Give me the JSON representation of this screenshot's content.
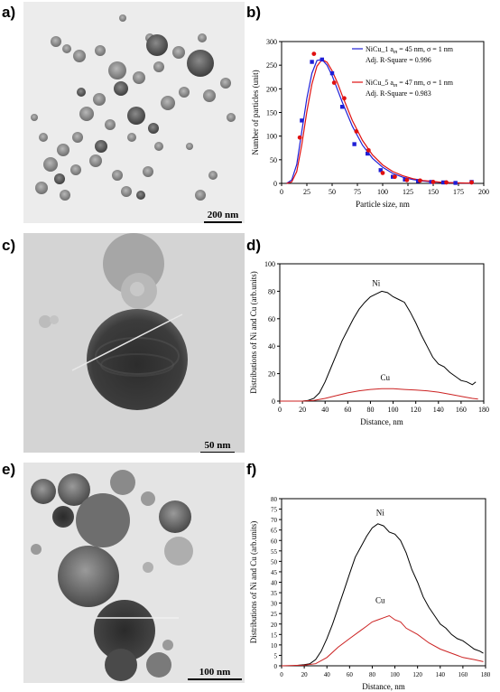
{
  "panel_labels": [
    "a)",
    "b)",
    "c)",
    "d)",
    "e)",
    "f)"
  ],
  "tem_images": [
    {
      "panel": "a)",
      "scale_label": "200 nm",
      "background": "#ececec"
    },
    {
      "panel": "c)",
      "scale_label": "50 nm",
      "background": "#dcdcdc"
    },
    {
      "panel": "e)",
      "scale_label": "100 nm",
      "background": "#e4e4e4"
    }
  ],
  "colors": {
    "blue": "#1f1fd6",
    "red": "#e01010",
    "black": "#000000"
  },
  "chart_data": [
    {
      "panel": "b)",
      "type": "scatter",
      "xlabel": "Particle size, nm",
      "ylabel": "Number of particles (unit)",
      "xlim": [
        0,
        200
      ],
      "ylim": [
        0,
        300
      ],
      "xticks": [
        "0",
        "25",
        "50",
        "75",
        "100",
        "125",
        "150",
        "175",
        "200"
      ],
      "yticks": [
        "0",
        "50",
        "100",
        "150",
        "200",
        "250",
        "300"
      ],
      "grid": false,
      "legend_position": "top-right",
      "legend": [
        {
          "line1": "NiCu_1 a",
          "sub": "m",
          "line1_rest": " = 45 nm, σ = 1 nm",
          "line2": "Adj. R-Square = 0.996",
          "color": "#1f1fd6"
        },
        {
          "line1": "NiCu_5 a",
          "sub": "m",
          "line1_rest": " = 47 nm, σ = 1 nm",
          "line2": "Adj. R-Square = 0.983",
          "color": "#e01010"
        }
      ],
      "series": [
        {
          "name": "NiCu_1",
          "color": "#1f1fd6",
          "points": [
            [
              20,
              133
            ],
            [
              30,
              257
            ],
            [
              40,
              262
            ],
            [
              50,
              233
            ],
            [
              60,
              162
            ],
            [
              72,
              83
            ],
            [
              85,
              63
            ],
            [
              98,
              28
            ],
            [
              110,
              14
            ],
            [
              122,
              8
            ],
            [
              135,
              5
            ],
            [
              148,
              3
            ],
            [
              160,
              2
            ],
            [
              172,
              1
            ],
            [
              188,
              3
            ]
          ],
          "fit": [
            [
              5,
              0
            ],
            [
              10,
              7
            ],
            [
              15,
              40
            ],
            [
              20,
              110
            ],
            [
              25,
              180
            ],
            [
              30,
              233
            ],
            [
              35,
              260
            ],
            [
              40,
              262
            ],
            [
              45,
              250
            ],
            [
              50,
              228
            ],
            [
              55,
              200
            ],
            [
              60,
              172
            ],
            [
              70,
              121
            ],
            [
              80,
              81
            ],
            [
              90,
              53
            ],
            [
              100,
              34
            ],
            [
              110,
              21
            ],
            [
              120,
              13
            ],
            [
              130,
              8
            ],
            [
              140,
              5
            ],
            [
              150,
              3
            ],
            [
              160,
              2
            ],
            [
              175,
              1
            ],
            [
              190,
              0.5
            ]
          ]
        },
        {
          "name": "NiCu_5",
          "color": "#e01010",
          "points": [
            [
              18,
              97
            ],
            [
              32,
              274
            ],
            [
              52,
              213
            ],
            [
              62,
              180
            ],
            [
              74,
              110
            ],
            [
              86,
              70
            ],
            [
              100,
              22
            ],
            [
              112,
              14
            ],
            [
              124,
              7
            ],
            [
              137,
              6
            ],
            [
              150,
              3
            ],
            [
              163,
              2
            ],
            [
              188,
              2
            ]
          ],
          "fit": [
            [
              5,
              0
            ],
            [
              10,
              3
            ],
            [
              15,
              25
            ],
            [
              20,
              82
            ],
            [
              25,
              152
            ],
            [
              30,
              210
            ],
            [
              35,
              248
            ],
            [
              40,
              262
            ],
            [
              45,
              256
            ],
            [
              50,
              238
            ],
            [
              55,
              214
            ],
            [
              60,
              186
            ],
            [
              70,
              133
            ],
            [
              80,
              91
            ],
            [
              90,
              60
            ],
            [
              100,
              39
            ],
            [
              110,
              25
            ],
            [
              120,
              16
            ],
            [
              130,
              10
            ],
            [
              140,
              6
            ],
            [
              150,
              4
            ],
            [
              160,
              2
            ],
            [
              175,
              1
            ],
            [
              190,
              0.5
            ]
          ]
        }
      ]
    },
    {
      "panel": "d)",
      "type": "line",
      "xlabel": "Distance, nm",
      "ylabel": "Distributions of Ni and Cu (arb.units)",
      "xlim": [
        0,
        180
      ],
      "ylim": [
        0,
        100
      ],
      "xticks": [
        "0",
        "20",
        "40",
        "60",
        "80",
        "100",
        "120",
        "140",
        "160",
        "180"
      ],
      "yticks": [
        "0",
        "20",
        "40",
        "60",
        "80",
        "100"
      ],
      "grid": false,
      "annotations": [
        "Ni",
        "Cu"
      ],
      "series": [
        {
          "name": "Ni",
          "color": "#000000",
          "points": [
            [
              0,
              0
            ],
            [
              10,
              0
            ],
            [
              20,
              0
            ],
            [
              25,
              0.5
            ],
            [
              30,
              2
            ],
            [
              35,
              6
            ],
            [
              40,
              14
            ],
            [
              45,
              24
            ],
            [
              50,
              34
            ],
            [
              55,
              44
            ],
            [
              60,
              52
            ],
            [
              65,
              60
            ],
            [
              70,
              67
            ],
            [
              75,
              72
            ],
            [
              80,
              76
            ],
            [
              85,
              78
            ],
            [
              90,
              80
            ],
            [
              95,
              79
            ],
            [
              100,
              76
            ],
            [
              105,
              74
            ],
            [
              110,
              72
            ],
            [
              115,
              65
            ],
            [
              120,
              57
            ],
            [
              125,
              48
            ],
            [
              130,
              40
            ],
            [
              135,
              32
            ],
            [
              140,
              27
            ],
            [
              145,
              25
            ],
            [
              150,
              21
            ],
            [
              155,
              18
            ],
            [
              160,
              15
            ],
            [
              165,
              14
            ],
            [
              170,
              12
            ],
            [
              173,
              14
            ]
          ]
        },
        {
          "name": "Cu",
          "color": "#cc2222",
          "points": [
            [
              0,
              0
            ],
            [
              20,
              0
            ],
            [
              30,
              0.5
            ],
            [
              40,
              2
            ],
            [
              50,
              4
            ],
            [
              60,
              6
            ],
            [
              70,
              7.5
            ],
            [
              80,
              8.5
            ],
            [
              90,
              9
            ],
            [
              100,
              9
            ],
            [
              110,
              8.5
            ],
            [
              120,
              8
            ],
            [
              130,
              7.5
            ],
            [
              140,
              6.5
            ],
            [
              150,
              5
            ],
            [
              160,
              3.5
            ],
            [
              170,
              2
            ],
            [
              175,
              1.5
            ]
          ]
        }
      ]
    },
    {
      "panel": "f)",
      "type": "line",
      "xlabel": "Distance, nm",
      "ylabel": "Distributions of Ni and Cu (arb.units)",
      "xlim": [
        0,
        180
      ],
      "ylim": [
        0,
        80
      ],
      "xticks": [
        "0",
        "20",
        "40",
        "60",
        "80",
        "100",
        "120",
        "140",
        "160",
        "180"
      ],
      "yticks": [
        "0",
        "5",
        "10",
        "15",
        "20",
        "25",
        "30",
        "35",
        "40",
        "45",
        "50",
        "55",
        "60",
        "65",
        "70",
        "75",
        "80"
      ],
      "grid": false,
      "annotations": [
        "Ni",
        "Cu"
      ],
      "series": [
        {
          "name": "Ni",
          "color": "#000000",
          "points": [
            [
              0,
              0
            ],
            [
              10,
              0
            ],
            [
              20,
              0.5
            ],
            [
              25,
              1
            ],
            [
              30,
              3
            ],
            [
              35,
              7
            ],
            [
              40,
              13
            ],
            [
              45,
              20
            ],
            [
              50,
              28
            ],
            [
              55,
              36
            ],
            [
              60,
              44
            ],
            [
              65,
              52
            ],
            [
              70,
              57
            ],
            [
              75,
              62
            ],
            [
              80,
              66
            ],
            [
              85,
              68
            ],
            [
              90,
              67
            ],
            [
              95,
              64
            ],
            [
              100,
              63
            ],
            [
              105,
              60
            ],
            [
              110,
              54
            ],
            [
              115,
              46
            ],
            [
              120,
              40
            ],
            [
              125,
              33
            ],
            [
              130,
              28
            ],
            [
              135,
              24
            ],
            [
              140,
              20
            ],
            [
              145,
              18
            ],
            [
              150,
              15
            ],
            [
              155,
              13
            ],
            [
              160,
              12
            ],
            [
              165,
              10
            ],
            [
              170,
              8
            ],
            [
              175,
              7
            ],
            [
              178,
              6
            ]
          ]
        },
        {
          "name": "Cu",
          "color": "#cc2222",
          "points": [
            [
              0,
              0
            ],
            [
              20,
              0.3
            ],
            [
              30,
              1
            ],
            [
              40,
              4
            ],
            [
              50,
              9
            ],
            [
              60,
              13
            ],
            [
              70,
              17
            ],
            [
              75,
              19
            ],
            [
              80,
              21
            ],
            [
              85,
              22
            ],
            [
              90,
              23
            ],
            [
              95,
              24
            ],
            [
              100,
              22
            ],
            [
              105,
              21
            ],
            [
              110,
              18
            ],
            [
              120,
              15
            ],
            [
              130,
              11
            ],
            [
              140,
              8
            ],
            [
              150,
              6
            ],
            [
              160,
              4
            ],
            [
              170,
              3
            ],
            [
              178,
              2
            ]
          ]
        }
      ]
    }
  ]
}
